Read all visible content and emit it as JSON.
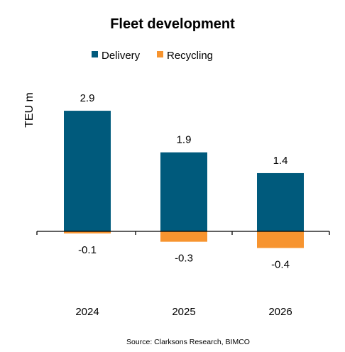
{
  "chart_data": {
    "type": "bar",
    "title": "Fleet development",
    "ylabel": "TEU m",
    "xlabel": "",
    "categories": [
      "2024",
      "2025",
      "2026"
    ],
    "series": [
      {
        "name": "Delivery",
        "color": "#005a7c",
        "values": [
          2.9,
          1.9,
          1.4
        ],
        "labels": [
          "2.9",
          "1.9",
          "1.4"
        ]
      },
      {
        "name": "Recycling",
        "color": "#f7942f",
        "values": [
          -0.05,
          -0.25,
          -0.4
        ],
        "labels": [
          "-0.1",
          "-0.3",
          "-0.4"
        ]
      }
    ],
    "stacked": true,
    "legend_position": "top",
    "grid": false,
    "source": "Source: Clarksons Research, BIMCO"
  }
}
